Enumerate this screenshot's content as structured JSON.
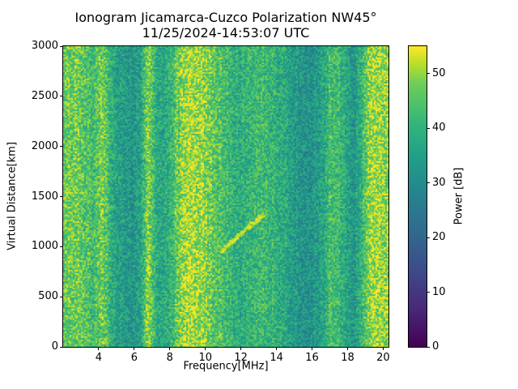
{
  "figure": {
    "title_line1": "Ionogram Jicamarca-Cuzco Polarization NW45°",
    "title_line2": "11/25/2024-14:53:07 UTC"
  },
  "chart_data": {
    "type": "heatmap",
    "title": "Ionogram Jicamarca-Cuzco Polarization NW45°",
    "subtitle": "11/25/2024-14:53:07 UTC",
    "xlabel": "Frequency[MHz]",
    "ylabel": "Virtual Distance[km]",
    "colorbar_label": "Power [dB]",
    "colormap": "viridis",
    "xlim": [
      2.0,
      20.3
    ],
    "ylim": [
      0,
      3000
    ],
    "clim": [
      0,
      55
    ],
    "x_ticks": [
      4,
      6,
      8,
      10,
      12,
      14,
      16,
      18,
      20
    ],
    "y_ticks": [
      0,
      500,
      1000,
      1500,
      2000,
      2500,
      3000
    ],
    "colorbar_ticks": [
      0,
      10,
      20,
      30,
      40,
      50
    ],
    "noise_amplitude_db": 8,
    "frequency_power_profile": [
      {
        "f": 2.0,
        "p": 46
      },
      {
        "f": 2.6,
        "p": 47
      },
      {
        "f": 3.2,
        "p": 45
      },
      {
        "f": 3.6,
        "p": 42
      },
      {
        "f": 4.1,
        "p": 48
      },
      {
        "f": 4.6,
        "p": 40
      },
      {
        "f": 5.1,
        "p": 34
      },
      {
        "f": 5.8,
        "p": 32
      },
      {
        "f": 6.3,
        "p": 36
      },
      {
        "f": 6.7,
        "p": 49
      },
      {
        "f": 7.1,
        "p": 40
      },
      {
        "f": 7.6,
        "p": 36
      },
      {
        "f": 8.1,
        "p": 42
      },
      {
        "f": 8.6,
        "p": 49
      },
      {
        "f": 9.2,
        "p": 51
      },
      {
        "f": 10.0,
        "p": 48
      },
      {
        "f": 10.7,
        "p": 44
      },
      {
        "f": 11.3,
        "p": 41
      },
      {
        "f": 12.0,
        "p": 38
      },
      {
        "f": 12.8,
        "p": 43
      },
      {
        "f": 13.5,
        "p": 41
      },
      {
        "f": 14.2,
        "p": 39
      },
      {
        "f": 15.0,
        "p": 34
      },
      {
        "f": 15.8,
        "p": 31
      },
      {
        "f": 16.5,
        "p": 36
      },
      {
        "f": 17.0,
        "p": 44
      },
      {
        "f": 17.6,
        "p": 40
      },
      {
        "f": 18.3,
        "p": 33
      },
      {
        "f": 18.9,
        "p": 44
      },
      {
        "f": 19.4,
        "p": 51
      },
      {
        "f": 20.3,
        "p": 48
      }
    ],
    "echo_trace": {
      "f_start": 10.8,
      "d_start": 960,
      "f_end": 13.2,
      "d_end": 1330,
      "p": 53
    }
  }
}
